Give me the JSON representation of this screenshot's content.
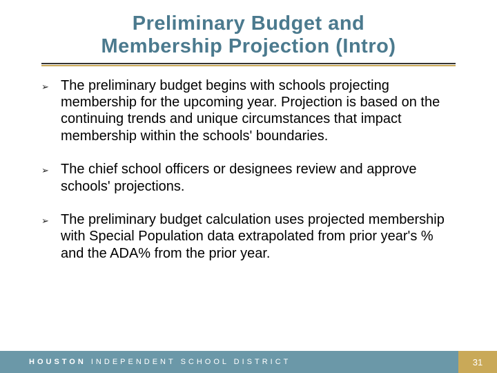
{
  "title": {
    "line1": "Preliminary Budget and",
    "line2": "Membership Projection (Intro)"
  },
  "bullets": [
    "The preliminary budget begins with schools projecting membership for the upcoming year. Projection is based on the continuing trends and unique circumstances that impact membership within the schools' boundaries.",
    "The chief school officers or designees review and approve schools' projections.",
    "The preliminary budget calculation uses projected membership with Special Population data extrapolated from prior year's % and the ADA% from the prior year."
  ],
  "footer": {
    "org_bold": "HOUSTON",
    "org_rest": " INDEPENDENT SCHOOL DISTRICT",
    "page_number": "31"
  },
  "colors": {
    "title_color": "#4b7a8e",
    "accent_gold": "#c9a958",
    "footer_teal": "#6b98a8",
    "text_color": "#000000",
    "rule_color": "#333333"
  },
  "typography": {
    "title_fontsize_pt": 22,
    "body_fontsize_pt": 15,
    "footer_fontsize_pt": 8
  }
}
